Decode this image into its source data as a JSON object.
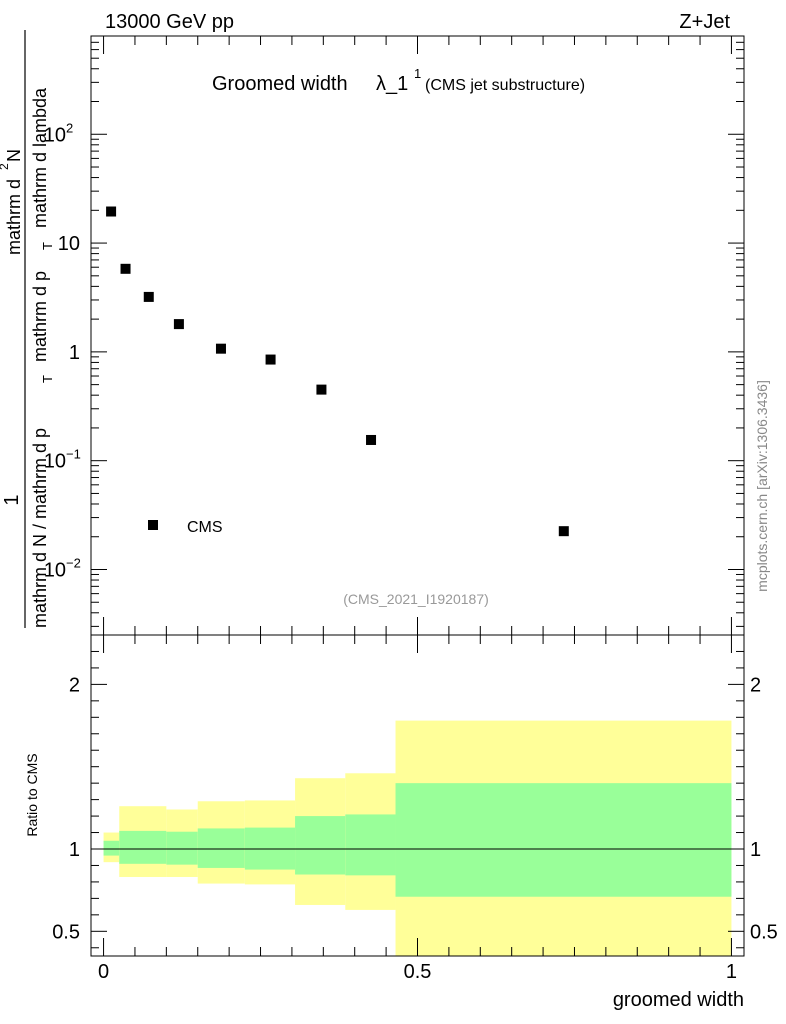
{
  "header": {
    "left": "13000 GeV pp",
    "right": "Z+Jet"
  },
  "title": {
    "main": "Groomed width",
    "lambda": "λ_1",
    "superscript": "1",
    "sub": "(CMS jet substructure)"
  },
  "ylabel": {
    "numerator_one": "1",
    "denominator_one": "mathrm d N / mathrm d p",
    "denominator_sub": "T",
    "numerator_two": "mathrm d",
    "numerator_two_super": "2",
    "numerator_two_rest": "N",
    "denominator_two_a": "mathrm d p",
    "denominator_two_sub": "T",
    "denominator_two_b": "mathrm d lambda"
  },
  "side_label": "mcplots.cern.ch [arXiv:1306.3436]",
  "analysis_label": "(CMS_2021_I1920187)",
  "legend": {
    "entry": "CMS"
  },
  "xlabel": "groomed width",
  "ratio_ylabel": "Ratio to CMS",
  "chart_data": [
    {
      "type": "scatter",
      "log_y": true,
      "xlim": [
        -0.02,
        1.02
      ],
      "ylim": [
        0.0025,
        800
      ],
      "x_ticks": [
        "0",
        "0.5",
        "1"
      ],
      "y_ticks": [
        "10^-2",
        "10^-1",
        "1",
        "10",
        "10^2"
      ],
      "series": [
        {
          "name": "CMS",
          "color": "#000000",
          "x": [
            0.012,
            0.035,
            0.072,
            0.12,
            0.187,
            0.266,
            0.347,
            0.426,
            0.733
          ],
          "y": [
            19.5,
            5.8,
            3.2,
            1.8,
            1.07,
            0.85,
            0.45,
            0.155,
            0.0225
          ]
        }
      ]
    },
    {
      "type": "area",
      "ylim": [
        0.35,
        2.3
      ],
      "y_ticks": [
        "0.5",
        "1",
        "2"
      ],
      "reference_line": 1,
      "bins": [
        0.0,
        0.025,
        0.1,
        0.15,
        0.225,
        0.305,
        0.385,
        0.465,
        1.0
      ],
      "inner_band": {
        "color": "#99ff99",
        "low": [
          0.96,
          0.91,
          0.905,
          0.885,
          0.875,
          0.845,
          0.84,
          0.52
        ],
        "high": [
          1.05,
          1.11,
          1.105,
          1.125,
          1.13,
          1.2,
          1.21,
          1.53
        ]
      },
      "outer_band": {
        "color": "#ffff99",
        "low": [
          0.92,
          0.83,
          0.83,
          0.79,
          0.785,
          0.66,
          0.63,
          0.1
        ],
        "high": [
          1.1,
          1.26,
          1.24,
          1.29,
          1.295,
          1.43,
          1.46,
          1.96
        ]
      },
      "last_bin_band": {
        "inner": [
          0.71,
          1.4
        ],
        "outer": [
          0.1,
          1.78
        ]
      }
    }
  ]
}
